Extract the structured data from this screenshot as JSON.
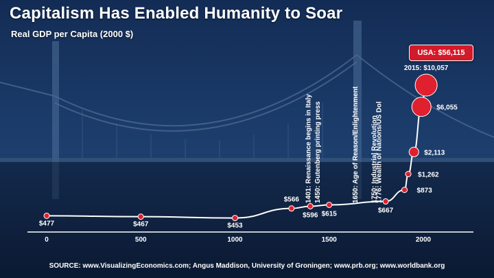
{
  "title": "Capitalism Has Enabled Humanity to Soar",
  "subtitle": "Real GDP per Capita (2000 $)",
  "usa_label": "USA: $56,115",
  "source": "SOURCE:  www.VisualizingEconomics.com; Angus Maddison, University of Groningen; www.prb.org; www.worldbank.org",
  "colors": {
    "marker": "#e0202e",
    "line": "#ffffff",
    "callout": "#d31a2a"
  },
  "chart_data": {
    "type": "line",
    "title": "Capitalism Has Enabled Humanity to Soar",
    "ylabel": "Real GDP per Capita (2000 $)",
    "xlim": [
      0,
      2000
    ],
    "x_ticks": [
      "0",
      "500",
      "1000",
      "1500",
      "2000"
    ],
    "points": [
      {
        "x": 0,
        "y": 477,
        "label": "$477"
      },
      {
        "x": 500,
        "y": 467,
        "label": "$467"
      },
      {
        "x": 1000,
        "y": 453,
        "label": "$453"
      },
      {
        "x": 1300,
        "y": 566,
        "label": "$566"
      },
      {
        "x": 1400,
        "y": 596,
        "label": "$596"
      },
      {
        "x": 1500,
        "y": 615,
        "label": "$615"
      },
      {
        "x": 1800,
        "y": 667,
        "label": "$667"
      },
      {
        "x": 1900,
        "y": 873,
        "label": "$873"
      },
      {
        "x": 1920,
        "y": 1262,
        "label": "$1,262"
      },
      {
        "x": 1950,
        "y": 2113,
        "label": "$2,113"
      },
      {
        "x": 1990,
        "y": 6055,
        "label": "$6,055"
      },
      {
        "x": 2015,
        "y": 10057,
        "label": "2015: $10,057"
      }
    ],
    "annotations": [
      {
        "x": 1401,
        "text": "1401: Renaissance begins in Italy"
      },
      {
        "x": 1450,
        "text": "1450: Gutenberg printing press"
      },
      {
        "x": 1650,
        "text": "1650: Age of Reason/Enlightenment"
      },
      {
        "x": 1750,
        "text": "1750: Industrial Revolution"
      },
      {
        "x": 1776,
        "text": "1776: Wealth of Nations/US Dol"
      }
    ],
    "callout": {
      "text": "USA: $56,115"
    },
    "grid": false
  }
}
